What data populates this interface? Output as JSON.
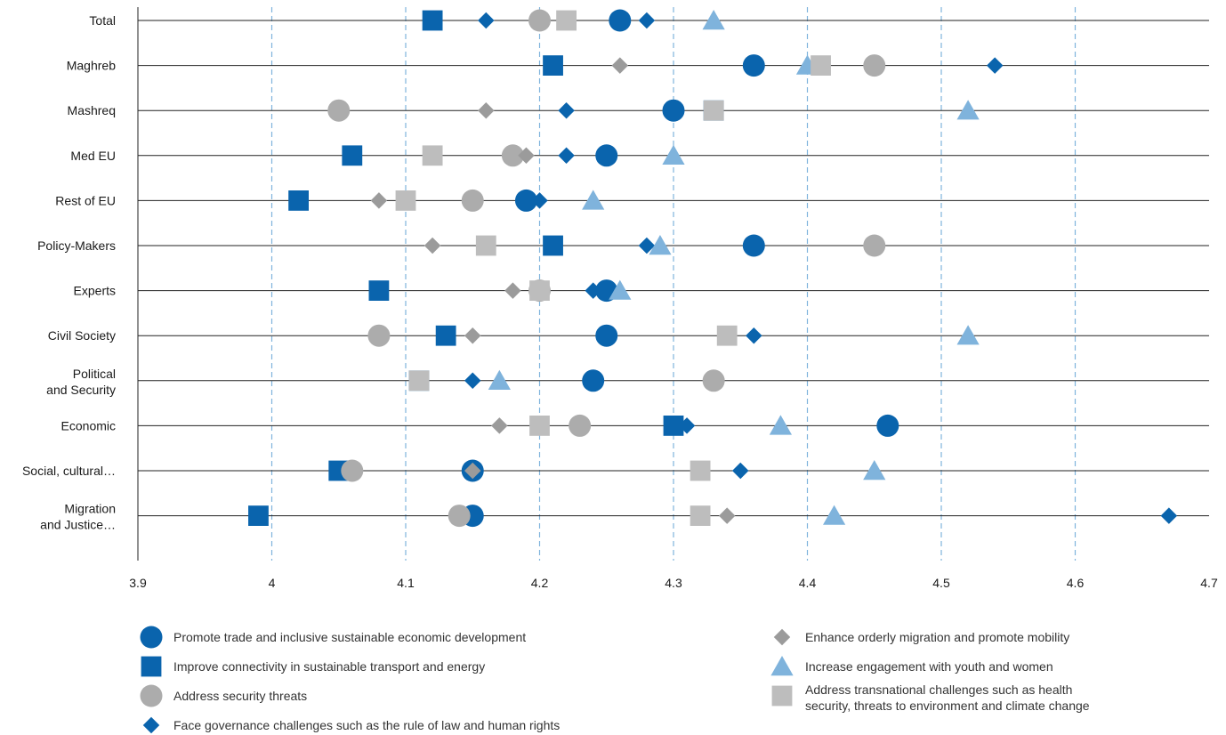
{
  "chart_data": {
    "type": "scatter",
    "categories": [
      [
        "Total"
      ],
      [
        "Maghreb"
      ],
      [
        "Mashreq"
      ],
      [
        "Med EU"
      ],
      [
        "Rest of EU"
      ],
      [
        "Policy-Makers"
      ],
      [
        "Experts"
      ],
      [
        "Civil Society"
      ],
      [
        "Political",
        "and Security"
      ],
      [
        "Economic"
      ],
      [
        "Social, cultural…"
      ],
      [
        "Migration",
        "and Justice…"
      ]
    ],
    "xlim": [
      3.9,
      4.7
    ],
    "x_ticks": [
      "3.9",
      "4",
      "4.1",
      "4.2",
      "4.3",
      "4.4",
      "4.5",
      "4.6",
      "4.7"
    ],
    "x_tick_values": [
      3.9,
      4.0,
      4.1,
      4.2,
      4.3,
      4.4,
      4.5,
      4.6,
      4.7
    ],
    "grid": "vertical dashed",
    "legend_position": "bottom",
    "series": [
      {
        "name": "Promote trade and inclusive sustainable economic development",
        "marker": "circle",
        "color": "#0a64ad",
        "values": [
          4.26,
          4.36,
          4.3,
          4.25,
          4.19,
          4.36,
          4.25,
          4.25,
          4.24,
          4.46,
          4.15,
          4.15
        ]
      },
      {
        "name": "Improve connectivity in sustainable transport and energy",
        "marker": "square",
        "color": "#0a64ad",
        "values": [
          4.12,
          4.21,
          4.33,
          4.06,
          4.02,
          4.21,
          4.08,
          4.13,
          4.11,
          4.3,
          4.05,
          3.99
        ]
      },
      {
        "name": "Address security threats",
        "marker": "circle",
        "color": "#acacac",
        "values": [
          4.2,
          4.45,
          4.05,
          4.18,
          4.15,
          4.45,
          4.2,
          4.08,
          4.33,
          4.23,
          4.06,
          4.14
        ]
      },
      {
        "name": "Face governance challenges such as the rule of law and human rights",
        "marker": "diamond",
        "color": "#0a64ad",
        "values": [
          [
            4.16,
            4.28
          ],
          4.54,
          4.22,
          4.22,
          4.2,
          4.28,
          4.24,
          4.36,
          4.15,
          4.31,
          4.35,
          4.67
        ]
      },
      {
        "name": "Enhance orderly migration and promote mobility",
        "marker": "diamond",
        "color": "#9b9b9b",
        "values": [
          null,
          4.26,
          4.16,
          4.19,
          4.08,
          4.12,
          4.18,
          4.15,
          null,
          4.17,
          4.15,
          4.34
        ]
      },
      {
        "name": "Increase engagement with youth and women",
        "marker": "triangle",
        "color": "#7fb3dc",
        "values": [
          4.33,
          4.4,
          4.52,
          4.3,
          4.24,
          4.29,
          4.26,
          4.52,
          4.17,
          4.38,
          4.45,
          4.42
        ]
      },
      {
        "name": "Address transnational challenges such as health security, threats to environment and climate change",
        "marker": "square",
        "color": "#bdbdbd",
        "values": [
          4.22,
          4.41,
          4.33,
          4.12,
          4.1,
          4.16,
          4.2,
          4.34,
          4.11,
          4.2,
          4.32,
          4.32
        ]
      }
    ],
    "legend": [
      {
        "marker": "circle",
        "color": "#0a64ad",
        "lines": [
          "Promote trade and inclusive sustainable economic development"
        ]
      },
      {
        "marker": "square",
        "color": "#0a64ad",
        "lines": [
          "Improve connectivity in sustainable transport and energy"
        ]
      },
      {
        "marker": "circle",
        "color": "#acacac",
        "lines": [
          "Address security threats"
        ]
      },
      {
        "marker": "diamond",
        "color": "#0a64ad",
        "lines": [
          "Face governance challenges such as the rule of law and human rights"
        ]
      },
      {
        "marker": "diamond",
        "color": "#9b9b9b",
        "lines": [
          "Enhance orderly migration and promote mobility"
        ]
      },
      {
        "marker": "triangle",
        "color": "#7fb3dc",
        "lines": [
          "Increase engagement with youth and women"
        ]
      },
      {
        "marker": "square",
        "color": "#bdbdbd",
        "lines": [
          "Address transnational challenges such as health",
          "security, threats to environment and climate change"
        ]
      }
    ]
  }
}
